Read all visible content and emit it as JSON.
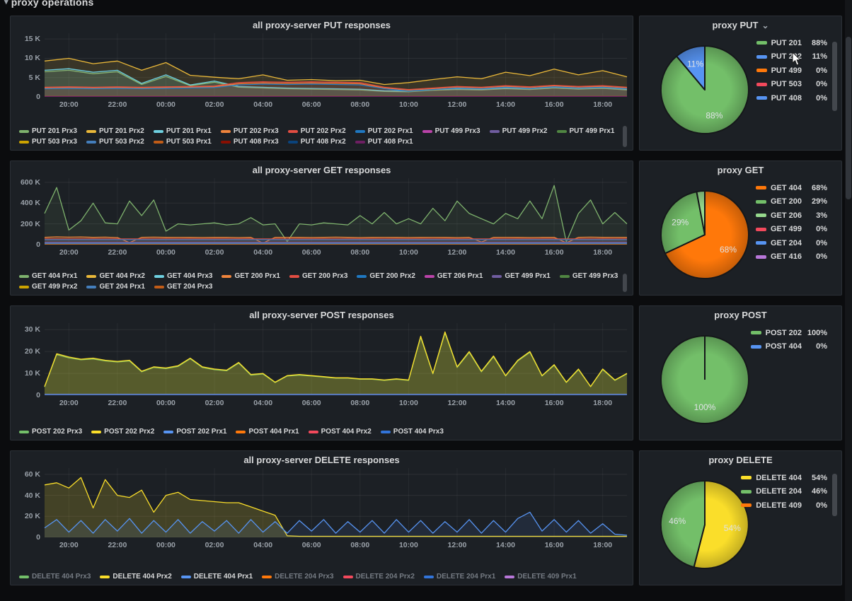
{
  "page": {
    "row_header": "proxy operations"
  },
  "chart_data": [
    {
      "id": "put_ts",
      "type": "line",
      "title": "all proxy-server PUT responses",
      "y_max": 16500,
      "y_ticks": {
        "labels": [
          "0",
          "5 K",
          "10 K",
          "15 K"
        ],
        "values": [
          0,
          5000,
          10000,
          15000
        ]
      },
      "x_ticks": [
        "20:00",
        "22:00",
        "00:00",
        "02:00",
        "04:00",
        "06:00",
        "08:00",
        "10:00",
        "12:00",
        "14:00",
        "16:00",
        "18:00"
      ],
      "series": [
        {
          "name": "PUT 201 Prx3",
          "color": "#7EB26D",
          "fill": 0.1,
          "values": [
            6500,
            6900,
            6000,
            6500,
            3200,
            5300,
            2900,
            3800,
            2500,
            2300,
            2100,
            2000,
            1900,
            1800,
            1400,
            1300,
            1700,
            1900,
            1800,
            2100,
            1900,
            2300,
            2000,
            2200,
            1800
          ]
        },
        {
          "name": "PUT 201 Prx2",
          "color": "#EAB839",
          "fill": 0.14,
          "values": [
            9300,
            10000,
            8600,
            9300,
            6900,
            8900,
            5600,
            5100,
            4700,
            5700,
            4300,
            4500,
            4200,
            4300,
            3200,
            3700,
            4500,
            5200,
            4700,
            6400,
            5500,
            7200,
            5700,
            6800,
            5200
          ]
        },
        {
          "name": "PUT 201 Prx1",
          "color": "#6ED0E0",
          "fill": 0.12,
          "values": [
            6900,
            7300,
            6400,
            6900,
            3500,
            5700,
            3100,
            4100,
            2700,
            2500,
            2300,
            2200,
            2100,
            2000,
            1600,
            1500,
            1900,
            2100,
            2000,
            2300,
            2100,
            2500,
            2200,
            2400,
            2000
          ]
        },
        {
          "name": "PUT 202 Prx3",
          "color": "#EF843C",
          "fill": 0.08,
          "values": [
            2300,
            2400,
            2300,
            2400,
            2300,
            2400,
            2500,
            2600,
            3400,
            3600,
            3500,
            3600,
            3500,
            3400,
            2300,
            1700,
            2100,
            2500,
            2300,
            2700,
            2400,
            2800,
            2500,
            2700,
            2300
          ]
        },
        {
          "name": "PUT 202 Prx2",
          "color": "#E24D42",
          "fill": 0.1,
          "values": [
            2500,
            2600,
            2500,
            2600,
            2500,
            2600,
            2700,
            2800,
            3700,
            3900,
            3800,
            3900,
            3800,
            3700,
            2500,
            1900,
            2300,
            2700,
            2500,
            2900,
            2600,
            3000,
            2700,
            2900,
            2500
          ]
        },
        {
          "name": "PUT 202 Prx1",
          "color": "#1F78C1",
          "fill": 0.08,
          "values": [
            2100,
            2200,
            2100,
            2200,
            2100,
            2200,
            2300,
            2400,
            3100,
            3300,
            3200,
            3300,
            3200,
            3100,
            2100,
            1500,
            1900,
            2300,
            2100,
            2500,
            2200,
            2600,
            2300,
            2500,
            2100
          ]
        },
        {
          "name": "PUT 499 Prx3",
          "color": "#BA43A9",
          "values": [
            250,
            250
          ]
        },
        {
          "name": "PUT 499 Prx2",
          "color": "#705DA0",
          "values": [
            220,
            220
          ]
        },
        {
          "name": "PUT 499 Prx1",
          "color": "#508642",
          "values": [
            200,
            200
          ]
        },
        {
          "name": "PUT 503 Prx3",
          "color": "#CCA300",
          "values": [
            180,
            180
          ]
        },
        {
          "name": "PUT 503 Prx2",
          "color": "#447EBC",
          "values": [
            160,
            160
          ]
        },
        {
          "name": "PUT 503 Prx1",
          "color": "#C15C17",
          "values": [
            140,
            140
          ]
        },
        {
          "name": "PUT 408 Prx3",
          "color": "#890F02",
          "values": [
            120,
            120
          ]
        },
        {
          "name": "PUT 408 Prx2",
          "color": "#0A437C",
          "values": [
            100,
            100
          ]
        },
        {
          "name": "PUT 408 Prx1",
          "color": "#6D1F62",
          "values": [
            90,
            90
          ]
        }
      ]
    },
    {
      "id": "put_pie",
      "type": "pie",
      "title": "proxy PUT",
      "slices": [
        {
          "name": "PUT 201",
          "pct": 88,
          "color": "#73BF69"
        },
        {
          "name": "PUT 202",
          "pct": 11,
          "color": "#5794F2"
        },
        {
          "name": "PUT 499",
          "pct": 0,
          "color": "#FF780A"
        },
        {
          "name": "PUT 503",
          "pct": 0,
          "color": "#F2495C"
        },
        {
          "name": "PUT 408",
          "pct": 0,
          "color": "#5794F2"
        }
      ]
    },
    {
      "id": "get_ts",
      "type": "line",
      "title": "all proxy-server GET responses",
      "y_max": 640000,
      "y_ticks": {
        "labels": [
          "0",
          "200 K",
          "400 K",
          "600 K"
        ],
        "values": [
          0,
          200000,
          400000,
          600000
        ]
      },
      "x_ticks": [
        "20:00",
        "22:00",
        "00:00",
        "02:00",
        "04:00",
        "06:00",
        "08:00",
        "10:00",
        "12:00",
        "14:00",
        "16:00",
        "18:00"
      ],
      "series": [
        {
          "name": "GET 404 Prx1",
          "color": "#7EB26D",
          "fill": 0.1,
          "values": [
            300000,
            550000,
            140000,
            230000,
            400000,
            210000,
            200000,
            420000,
            280000,
            430000,
            130000,
            200000,
            190000,
            200000,
            210000,
            190000,
            200000,
            260000,
            190000,
            200000,
            30000,
            200000,
            190000,
            210000,
            200000,
            190000,
            280000,
            200000,
            310000,
            200000,
            250000,
            200000,
            350000,
            230000,
            420000,
            300000,
            250000,
            200000,
            300000,
            250000,
            420000,
            250000,
            570000,
            25000,
            300000,
            430000,
            200000,
            310000,
            200000
          ]
        },
        {
          "name": "GET 404 Prx2",
          "color": "#EAB839",
          "values": [
            4000,
            4000
          ]
        },
        {
          "name": "GET 404 Prx3",
          "color": "#6ED0E0",
          "values": [
            3500,
            3500
          ]
        },
        {
          "name": "GET 200 Prx1",
          "color": "#EF843C",
          "fill": 0.16,
          "values": [
            70000,
            75000,
            72000,
            74000,
            70000,
            72000,
            68000,
            20000,
            70000,
            72000,
            70000,
            71000,
            70000,
            69000,
            70000,
            71000,
            68000,
            70000,
            15000,
            70000,
            71000,
            70000,
            69000,
            70000,
            72000,
            70000,
            68000,
            70000,
            71000,
            70000,
            69000,
            70000,
            71000,
            70000,
            68000,
            70000,
            25000,
            70000,
            71000,
            70000,
            69000,
            70000,
            71000,
            18000,
            70000,
            72000,
            70000,
            71000,
            70000
          ]
        },
        {
          "name": "GET 200 Prx3",
          "color": "#E24D42",
          "fill": 0.15,
          "values": [
            55000,
            55000
          ]
        },
        {
          "name": "GET 200 Prx2",
          "color": "#1F78C1",
          "fill": 0.12,
          "values": [
            48000,
            48000
          ]
        },
        {
          "name": "GET 206 Prx1",
          "color": "#BA43A9",
          "values": [
            1500,
            1500
          ]
        },
        {
          "name": "GET 499 Prx1",
          "color": "#705DA0",
          "fill": 0.25,
          "values": [
            22000,
            22000
          ]
        },
        {
          "name": "GET 499 Prx3",
          "color": "#508642",
          "values": [
            1000,
            1000
          ]
        },
        {
          "name": "GET 499 Prx2",
          "color": "#CCA300",
          "values": [
            900,
            900
          ]
        },
        {
          "name": "GET 204 Prx1",
          "color": "#447EBC",
          "fill": 0.2,
          "values": [
            12000,
            12000
          ]
        },
        {
          "name": "GET 204 Prx3",
          "color": "#C15C17",
          "values": [
            800,
            800
          ]
        }
      ]
    },
    {
      "id": "get_pie",
      "type": "pie",
      "title": "proxy GET",
      "slices": [
        {
          "name": "GET 404",
          "pct": 68,
          "color": "#FF780A"
        },
        {
          "name": "GET 200",
          "pct": 29,
          "color": "#73BF69"
        },
        {
          "name": "GET 206",
          "pct": 3,
          "color": "#96D98D"
        },
        {
          "name": "GET 499",
          "pct": 0,
          "color": "#F2495C"
        },
        {
          "name": "GET 204",
          "pct": 0,
          "color": "#5794F2"
        },
        {
          "name": "GET 416",
          "pct": 0,
          "color": "#B877D9"
        }
      ]
    },
    {
      "id": "post_ts",
      "type": "line",
      "title": "all proxy-server POST responses",
      "y_max": 33000,
      "y_ticks": {
        "labels": [
          "0",
          "10 K",
          "20 K",
          "30 K"
        ],
        "values": [
          0,
          10000,
          20000,
          30000
        ]
      },
      "x_ticks": [
        "20:00",
        "22:00",
        "00:00",
        "02:00",
        "04:00",
        "06:00",
        "08:00",
        "10:00",
        "12:00",
        "14:00",
        "16:00",
        "18:00"
      ],
      "series": [
        {
          "name": "POST 202 Prx3",
          "color": "#73BF69",
          "fill": 0.14,
          "values": [
            3800,
            18600,
            17100,
            16200,
            16600,
            15700,
            15200,
            15700,
            10700,
            12700,
            12200,
            13200,
            16700,
            12700,
            11700,
            11200,
            14700,
            9200,
            9700,
            5800,
            8800,
            9200,
            8800,
            8300,
            7800,
            7800,
            7300,
            7300,
            6800,
            7300,
            6800,
            26500,
            9800,
            28500,
            12700,
            19600,
            10700,
            17600,
            8800,
            15700,
            19600,
            8800,
            13700,
            5800,
            11700,
            3900,
            11700,
            6800,
            9800
          ]
        },
        {
          "name": "POST 202 Prx2",
          "color": "#FADE2A",
          "fill": 0.22,
          "values": [
            4000,
            19000,
            17500,
            16500,
            17000,
            16000,
            15500,
            16000,
            11000,
            13000,
            12500,
            13500,
            17000,
            13000,
            12000,
            11500,
            15000,
            9500,
            10000,
            6000,
            9000,
            9500,
            9000,
            8500,
            8000,
            8000,
            7500,
            7500,
            7000,
            7500,
            7000,
            27000,
            10000,
            29000,
            13000,
            20000,
            11000,
            18000,
            9000,
            16000,
            20000,
            9000,
            14000,
            6000,
            12000,
            4000,
            12000,
            7000,
            10000
          ]
        },
        {
          "name": "POST 202 Prx1",
          "color": "#5794F2",
          "values": [
            500,
            500
          ]
        },
        {
          "name": "POST 404 Prx1",
          "color": "#FF780A",
          "values": [
            350,
            350
          ]
        },
        {
          "name": "POST 404 Prx2",
          "color": "#F2495C",
          "values": [
            300,
            300
          ]
        },
        {
          "name": "POST 404 Prx3",
          "color": "#3274D9",
          "values": [
            250,
            250
          ]
        }
      ]
    },
    {
      "id": "post_pie",
      "type": "pie",
      "title": "proxy POST",
      "slices": [
        {
          "name": "POST 202",
          "pct": 100,
          "color": "#73BF69"
        },
        {
          "name": "POST 404",
          "pct": 0,
          "color": "#5794F2"
        }
      ]
    },
    {
      "id": "delete_ts",
      "type": "line",
      "title": "all proxy-server DELETE responses",
      "y_max": 66000,
      "y_ticks": {
        "labels": [
          "0",
          "20 K",
          "40 K",
          "60 K"
        ],
        "values": [
          0,
          20000,
          40000,
          60000
        ]
      },
      "x_ticks": [
        "20:00",
        "22:00",
        "00:00",
        "02:00",
        "04:00",
        "06:00",
        "08:00",
        "10:00",
        "12:00",
        "14:00",
        "16:00",
        "18:00"
      ],
      "series": [
        {
          "name": "DELETE 404 Prx3",
          "color": "#73BF69",
          "dim": true,
          "values": []
        },
        {
          "name": "DELETE 404 Prx2",
          "color": "#FADE2A",
          "fill": 0.18,
          "values": [
            50000,
            52000,
            47000,
            57000,
            28000,
            55000,
            40000,
            38000,
            45000,
            24000,
            40000,
            43000,
            36000,
            35000,
            34000,
            33000,
            33000,
            29000,
            25000,
            21000,
            1500,
            1000,
            1000,
            1000,
            1000,
            1000,
            1000,
            1000,
            1000,
            1000,
            1000,
            1000,
            1000,
            1000,
            1000,
            1000,
            1000,
            1000,
            1000,
            1000,
            1000,
            1000,
            1000,
            1000,
            1000,
            1000,
            1000,
            1000,
            1000
          ]
        },
        {
          "name": "DELETE 404 Prx1",
          "color": "#5794F2",
          "fill": 0.1,
          "values": [
            9000,
            17000,
            5000,
            16000,
            4000,
            17000,
            6000,
            18000,
            4000,
            16000,
            5000,
            17000,
            4000,
            15000,
            6000,
            16000,
            4000,
            17000,
            5000,
            15000,
            4000,
            16000,
            6000,
            17000,
            4000,
            15000,
            5000,
            16000,
            4000,
            17000,
            5000,
            16000,
            4000,
            15000,
            5000,
            17000,
            4000,
            16000,
            5000,
            18000,
            24000,
            6000,
            17000,
            5000,
            16000,
            4000,
            13000,
            3000,
            2000
          ]
        },
        {
          "name": "DELETE 204 Prx3",
          "color": "#FF780A",
          "dim": true,
          "values": []
        },
        {
          "name": "DELETE 204 Prx2",
          "color": "#F2495C",
          "dim": true,
          "values": []
        },
        {
          "name": "DELETE 204 Prx1",
          "color": "#3274D9",
          "dim": true,
          "values": []
        },
        {
          "name": "DELETE 409 Prx1",
          "color": "#B877D9",
          "dim": true,
          "values": []
        }
      ]
    },
    {
      "id": "delete_pie",
      "type": "pie",
      "title": "proxy DELETE",
      "slices": [
        {
          "name": "DELETE 404",
          "pct": 54,
          "color": "#FADE2A"
        },
        {
          "name": "DELETE 204",
          "pct": 46,
          "color": "#73BF69"
        },
        {
          "name": "DELETE 409",
          "pct": 0,
          "color": "#FF780A"
        }
      ]
    }
  ]
}
